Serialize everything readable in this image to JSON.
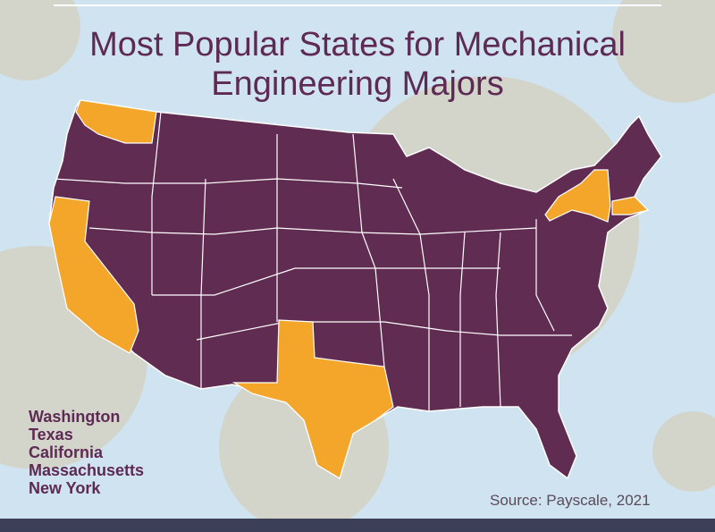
{
  "title": "Most Popular States for Mechanical Engineering Majors",
  "states": [
    "Washington",
    "Texas",
    "California",
    "Massachusetts",
    "New York"
  ],
  "source": "Source: Payscale, 2021"
}
